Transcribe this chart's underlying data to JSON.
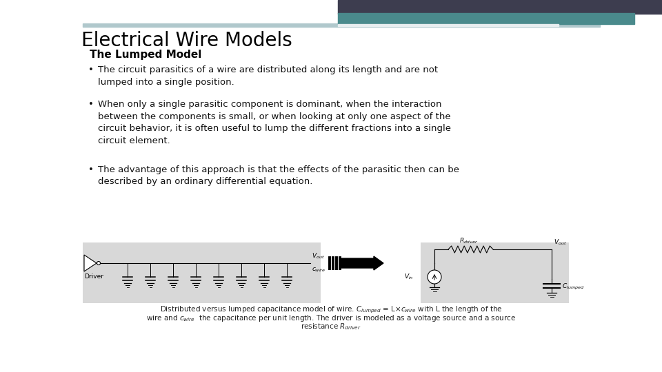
{
  "title": "Electrical Wire Models",
  "subtitle": "The Lumped Model",
  "background_color": "#ffffff",
  "title_color": "#000000",
  "subtitle_color": "#000000",
  "header_bar_dark": "#3d3d4f",
  "header_bar_teal": "#4a8a8c",
  "header_bar_light": "#b0c8cc",
  "bullet_points": [
    "The circuit parasitics of a wire are distributed along its length and are not\nlumped into a single position.",
    "When only a single parasitic component is dominant, when the interaction\nbetween the components is small, or when looking at only one aspect of the\ncircuit behavior, it is often useful to lump the different fractions into a single\ncircuit element.",
    "The advantage of this approach is that the effects of the parasitic then can be\ndescribed by an ordinary differential equation."
  ],
  "title_fontsize": 20,
  "subtitle_fontsize": 11,
  "body_fontsize": 9.5,
  "caption_fontsize": 7.5,
  "diagram_bg_left": "#d8d8d8",
  "diagram_bg_right": "#d8d8d8"
}
